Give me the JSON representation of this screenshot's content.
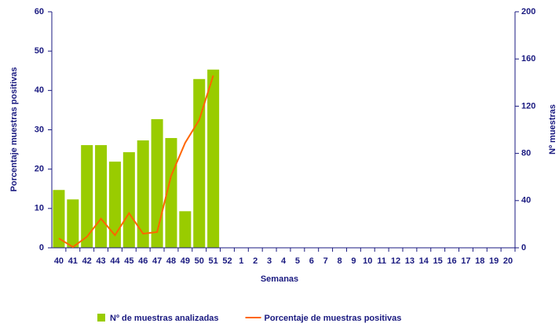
{
  "chart_data": {
    "type": "bar-line",
    "xlabel": "Semanas",
    "ylabel": "Porcentaje muestras  positivas",
    "y2label": "Nº muestras",
    "categories": [
      "40",
      "41",
      "42",
      "43",
      "44",
      "45",
      "46",
      "47",
      "48",
      "49",
      "50",
      "51",
      "52",
      "1",
      "2",
      "3",
      "4",
      "5",
      "6",
      "7",
      "8",
      "9",
      "10",
      "11",
      "12",
      "13",
      "14",
      "15",
      "16",
      "17",
      "18",
      "19",
      "20"
    ],
    "ylim": [
      0,
      60
    ],
    "yticks": [
      0,
      10,
      20,
      30,
      40,
      50,
      60
    ],
    "y2lim": [
      0,
      200
    ],
    "y2ticks": [
      0,
      40,
      80,
      120,
      160,
      200
    ],
    "axis_color": "#1a1a80",
    "series": [
      {
        "name": "Nº de muestras analizadas",
        "type": "bar",
        "axis": "y2",
        "color": "#99cc00",
        "values": [
          49,
          41,
          87,
          87,
          73,
          81,
          91,
          109,
          93,
          31,
          143,
          151,
          null,
          null,
          null,
          null,
          null,
          null,
          null,
          null,
          null,
          null,
          null,
          null,
          null,
          null,
          null,
          null,
          null,
          null,
          null,
          null,
          null
        ]
      },
      {
        "name": "Porcentaje de muestras positivas",
        "type": "line",
        "color": "#ff6600",
        "values": [
          2.4,
          0.2,
          2.8,
          7.4,
          3.2,
          8.8,
          3.6,
          4,
          18.3,
          26.7,
          32.5,
          43.8,
          null,
          null,
          null,
          null,
          null,
          null,
          null,
          null,
          null,
          null,
          null,
          null,
          null,
          null,
          null,
          null,
          null,
          null,
          null,
          null,
          null
        ]
      }
    ]
  }
}
